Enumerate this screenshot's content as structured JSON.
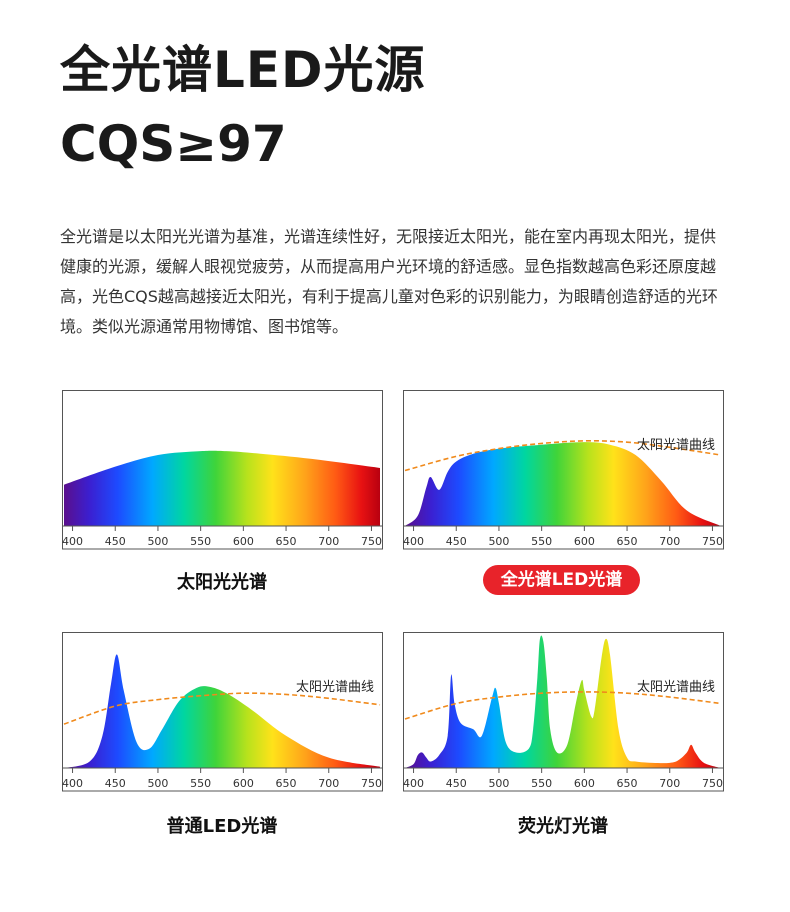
{
  "header": {
    "title_line1": "全光谱LED光源",
    "title_line2": "CQS≥97"
  },
  "description": "全光谱是以太阳光光谱为基准，光谱连续性好，无限接近太阳光，能在室内再现太阳光，提供健康的光源，缓解人眼视觉疲劳，从而提高用户光环境的舒适感。显色指数越高色彩还原度越高，光色CQS越高越接近太阳光，有利于提高儿童对色彩的识别能力，为眼睛创造舒适的光环境。类似光源通常用物博馆、图书馆等。",
  "colors": {
    "accent_red": "#e8232a",
    "sun_curve": "#f08a1c"
  },
  "chart_data": [
    {
      "type": "area",
      "label": "太阳光光谱",
      "highlight": false,
      "x_ticks": [
        400,
        450,
        500,
        550,
        600,
        650,
        700,
        750
      ],
      "xlim": [
        390,
        760
      ],
      "ylim": [
        0,
        1
      ],
      "sun_curve_label": "",
      "series": [
        {
          "x": [
            390,
            450,
            500,
            550,
            580,
            620,
            680,
            760
          ],
          "values": [
            0.32,
            0.46,
            0.55,
            0.58,
            0.58,
            0.56,
            0.52,
            0.45
          ]
        }
      ],
      "sun_curve": null
    },
    {
      "type": "area",
      "label": "全光谱LED光谱",
      "highlight": true,
      "x_ticks": [
        400,
        450,
        500,
        550,
        600,
        650,
        700,
        750
      ],
      "xlim": [
        390,
        760
      ],
      "ylim": [
        0,
        1
      ],
      "sun_curve_label": "太阳光谱曲线",
      "series": [
        {
          "x": [
            390,
            405,
            415,
            420,
            430,
            440,
            450,
            470,
            500,
            550,
            600,
            630,
            660,
            690,
            720,
            760
          ],
          "values": [
            0.0,
            0.08,
            0.3,
            0.38,
            0.28,
            0.42,
            0.5,
            0.56,
            0.6,
            0.63,
            0.65,
            0.63,
            0.55,
            0.35,
            0.12,
            0.0
          ]
        }
      ],
      "sun_curve": {
        "x": [
          390,
          450,
          500,
          550,
          600,
          650,
          700,
          760
        ],
        "values": [
          0.43,
          0.54,
          0.6,
          0.64,
          0.66,
          0.65,
          0.61,
          0.55
        ]
      }
    },
    {
      "type": "area",
      "label": "普通LED光谱",
      "highlight": false,
      "x_ticks": [
        400,
        450,
        500,
        550,
        600,
        650,
        700,
        750
      ],
      "xlim": [
        390,
        760
      ],
      "ylim": [
        0,
        1
      ],
      "sun_curve_label": "太阳光谱曲线",
      "series": [
        {
          "x": [
            390,
            420,
            435,
            445,
            452,
            460,
            475,
            490,
            505,
            525,
            545,
            560,
            580,
            610,
            650,
            700,
            760
          ],
          "values": [
            0.0,
            0.05,
            0.25,
            0.65,
            0.88,
            0.6,
            0.2,
            0.15,
            0.3,
            0.52,
            0.62,
            0.63,
            0.58,
            0.45,
            0.25,
            0.08,
            0.01
          ]
        }
      ],
      "sun_curve": {
        "x": [
          390,
          450,
          500,
          550,
          600,
          650,
          700,
          760
        ],
        "values": [
          0.34,
          0.48,
          0.53,
          0.56,
          0.58,
          0.57,
          0.54,
          0.49
        ]
      }
    },
    {
      "type": "area",
      "label": "荧光灯光谱",
      "highlight": false,
      "x_ticks": [
        400,
        450,
        500,
        550,
        600,
        650,
        700,
        750
      ],
      "xlim": [
        390,
        760
      ],
      "ylim": [
        0,
        1
      ],
      "sun_curve_label": "太阳光谱曲线",
      "series": [
        {
          "x": [
            390,
            400,
            405,
            410,
            415,
            420,
            430,
            440,
            444,
            448,
            455,
            470,
            480,
            492,
            496,
            500,
            508,
            520,
            535,
            540,
            545,
            548,
            552,
            556,
            560,
            568,
            580,
            590,
            597,
            600,
            608,
            612,
            620,
            625,
            630,
            640,
            650,
            660,
            680,
            700,
            710,
            720,
            725,
            730,
            740,
            760
          ],
          "values": [
            0.0,
            0.03,
            0.1,
            0.12,
            0.08,
            0.05,
            0.1,
            0.25,
            0.72,
            0.5,
            0.35,
            0.3,
            0.25,
            0.55,
            0.62,
            0.5,
            0.2,
            0.12,
            0.15,
            0.3,
            0.7,
            1.0,
            0.98,
            0.7,
            0.3,
            0.12,
            0.18,
            0.5,
            0.68,
            0.6,
            0.4,
            0.45,
            0.85,
            1.0,
            0.88,
            0.3,
            0.08,
            0.05,
            0.04,
            0.04,
            0.06,
            0.12,
            0.18,
            0.12,
            0.04,
            0.0
          ]
        }
      ],
      "sun_curve": {
        "x": [
          390,
          450,
          500,
          550,
          600,
          650,
          700,
          760
        ],
        "values": [
          0.38,
          0.5,
          0.55,
          0.58,
          0.59,
          0.58,
          0.55,
          0.5
        ]
      }
    }
  ]
}
